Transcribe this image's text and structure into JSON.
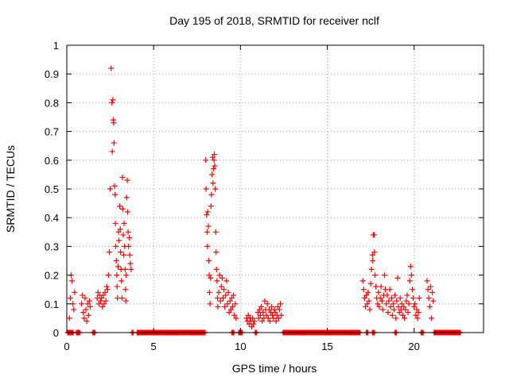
{
  "chart_data": {
    "type": "scatter",
    "title": "Day 195 of 2018, SRMTID for receiver nclf",
    "xlabel": "GPS time / hours",
    "ylabel": "SRMTID / TECUs",
    "xlim": [
      0,
      24
    ],
    "ylim": [
      0,
      1
    ],
    "xticks": [
      0,
      5,
      10,
      15,
      20
    ],
    "xtick_labels": [
      "0",
      "5",
      "10",
      "15",
      "20"
    ],
    "yticks": [
      0,
      0.1,
      0.2,
      0.3,
      0.4,
      0.5,
      0.6,
      0.7,
      0.8,
      0.9,
      1
    ],
    "ytick_labels": [
      "0",
      "0.1",
      "0.2",
      "0.3",
      "0.4",
      "0.5",
      "0.6",
      "0.7",
      "0.8",
      "0.9",
      "1"
    ],
    "grid": true,
    "marker": "+",
    "color": "#ff0000",
    "series": [
      {
        "name": "SRMTID",
        "points": [
          [
            0.15,
            0.05
          ],
          [
            0.2,
            0.12
          ],
          [
            0.25,
            0.2
          ],
          [
            0.3,
            0.18
          ],
          [
            0.35,
            0.1
          ],
          [
            0.4,
            0.08
          ],
          [
            0.45,
            0.14
          ],
          [
            0.85,
            0.1
          ],
          [
            0.9,
            0.13
          ],
          [
            0.95,
            0.07
          ],
          [
            1.0,
            0.05
          ],
          [
            1.05,
            0.12
          ],
          [
            1.1,
            0.08
          ],
          [
            1.15,
            0.04
          ],
          [
            1.2,
            0.1
          ],
          [
            1.25,
            0.06
          ],
          [
            1.3,
            0.11
          ],
          [
            1.35,
            0.09
          ],
          [
            1.75,
            0.12
          ],
          [
            1.8,
            0.14
          ],
          [
            1.85,
            0.1
          ],
          [
            1.9,
            0.13
          ],
          [
            1.95,
            0.11
          ],
          [
            2.0,
            0.12
          ],
          [
            2.05,
            0.09
          ],
          [
            2.1,
            0.13
          ],
          [
            2.15,
            0.1
          ],
          [
            2.2,
            0.14
          ],
          [
            2.25,
            0.11
          ],
          [
            2.3,
            0.16
          ],
          [
            2.35,
            0.15
          ],
          [
            2.4,
            0.2
          ],
          [
            2.45,
            0.28
          ],
          [
            2.5,
            0.5
          ],
          [
            2.55,
            0.92
          ],
          [
            2.6,
            0.8
          ],
          [
            2.62,
            0.63
          ],
          [
            2.65,
            0.81
          ],
          [
            2.68,
            0.74
          ],
          [
            2.7,
            0.73
          ],
          [
            2.72,
            0.66
          ],
          [
            2.75,
            0.51
          ],
          [
            2.78,
            0.48
          ],
          [
            2.8,
            0.38
          ],
          [
            2.82,
            0.3
          ],
          [
            2.85,
            0.25
          ],
          [
            2.88,
            0.2
          ],
          [
            2.9,
            0.16
          ],
          [
            2.92,
            0.12
          ],
          [
            2.95,
            0.23
          ],
          [
            2.98,
            0.35
          ],
          [
            3.0,
            0.32
          ],
          [
            3.05,
            0.44
          ],
          [
            3.08,
            0.36
          ],
          [
            3.1,
            0.28
          ],
          [
            3.12,
            0.22
          ],
          [
            3.15,
            0.18
          ],
          [
            3.18,
            0.12
          ],
          [
            3.2,
            0.54
          ],
          [
            3.22,
            0.43
          ],
          [
            3.25,
            0.34
          ],
          [
            3.28,
            0.27
          ],
          [
            3.3,
            0.38
          ],
          [
            3.33,
            0.3
          ],
          [
            3.36,
            0.22
          ],
          [
            3.38,
            0.15
          ],
          [
            3.4,
            0.11
          ],
          [
            3.42,
            0.2
          ],
          [
            3.45,
            0.47
          ],
          [
            3.48,
            0.53
          ],
          [
            3.5,
            0.42
          ],
          [
            3.53,
            0.35
          ],
          [
            3.56,
            0.3
          ],
          [
            3.6,
            0.33
          ],
          [
            3.63,
            0.27
          ],
          [
            3.66,
            0.24
          ],
          [
            3.7,
            0.22
          ],
          [
            8.0,
            0.6
          ],
          [
            8.02,
            0.5
          ],
          [
            8.05,
            0.41
          ],
          [
            8.08,
            0.35
          ],
          [
            8.1,
            0.3
          ],
          [
            8.12,
            0.42
          ],
          [
            8.15,
            0.37
          ],
          [
            8.18,
            0.25
          ],
          [
            8.2,
            0.2
          ],
          [
            8.22,
            0.14
          ],
          [
            8.25,
            0.1
          ],
          [
            8.28,
            0.19
          ],
          [
            8.3,
            0.44
          ],
          [
            8.33,
            0.48
          ],
          [
            8.36,
            0.55
          ],
          [
            8.4,
            0.61
          ],
          [
            8.42,
            0.52
          ],
          [
            8.45,
            0.57
          ],
          [
            8.48,
            0.6
          ],
          [
            8.5,
            0.62
          ],
          [
            8.52,
            0.58
          ],
          [
            8.55,
            0.5
          ],
          [
            8.58,
            0.35
          ],
          [
            8.6,
            0.28
          ],
          [
            8.62,
            0.22
          ],
          [
            8.65,
            0.18
          ],
          [
            8.68,
            0.12
          ],
          [
            8.7,
            0.09
          ],
          [
            8.75,
            0.14
          ],
          [
            8.8,
            0.2
          ],
          [
            8.85,
            0.11
          ],
          [
            8.9,
            0.16
          ],
          [
            8.95,
            0.19
          ],
          [
            9.0,
            0.12
          ],
          [
            9.05,
            0.15
          ],
          [
            9.1,
            0.09
          ],
          [
            9.15,
            0.13
          ],
          [
            9.2,
            0.18
          ],
          [
            9.25,
            0.1
          ],
          [
            9.3,
            0.14
          ],
          [
            9.35,
            0.07
          ],
          [
            9.4,
            0.11
          ],
          [
            9.45,
            0.08
          ],
          [
            9.5,
            0.12
          ],
          [
            9.55,
            0.09
          ],
          [
            9.6,
            0.13
          ],
          [
            9.65,
            0.06
          ],
          [
            9.7,
            0.1
          ],
          [
            9.75,
            0.05
          ],
          [
            10.35,
            0.05
          ],
          [
            10.4,
            0.04
          ],
          [
            10.45,
            0.06
          ],
          [
            10.5,
            0.03
          ],
          [
            10.55,
            0.05
          ],
          [
            10.6,
            0.04
          ],
          [
            10.65,
            0.02
          ],
          [
            10.7,
            0.05
          ],
          [
            10.75,
            0.03
          ],
          [
            10.8,
            0.04
          ],
          [
            11.0,
            0.07
          ],
          [
            11.05,
            0.05
          ],
          [
            11.1,
            0.08
          ],
          [
            11.15,
            0.06
          ],
          [
            11.2,
            0.09
          ],
          [
            11.25,
            0.04
          ],
          [
            11.3,
            0.07
          ],
          [
            11.35,
            0.05
          ],
          [
            11.4,
            0.11
          ],
          [
            11.45,
            0.08
          ],
          [
            11.5,
            0.06
          ],
          [
            11.55,
            0.1
          ],
          [
            11.6,
            0.05
          ],
          [
            11.65,
            0.08
          ],
          [
            11.7,
            0.04
          ],
          [
            11.75,
            0.07
          ],
          [
            11.8,
            0.09
          ],
          [
            11.85,
            0.06
          ],
          [
            11.9,
            0.05
          ],
          [
            11.95,
            0.08
          ],
          [
            12.0,
            0.07
          ],
          [
            12.05,
            0.04
          ],
          [
            12.1,
            0.06
          ],
          [
            12.15,
            0.09
          ],
          [
            12.2,
            0.05
          ],
          [
            12.25,
            0.08
          ],
          [
            12.3,
            0.1
          ],
          [
            12.35,
            0.06
          ],
          [
            17.05,
            0.18
          ],
          [
            17.1,
            0.15
          ],
          [
            17.15,
            0.12
          ],
          [
            17.2,
            0.09
          ],
          [
            17.25,
            0.13
          ],
          [
            17.3,
            0.1
          ],
          [
            17.35,
            0.14
          ],
          [
            17.4,
            0.11
          ],
          [
            17.45,
            0.08
          ],
          [
            17.5,
            0.17
          ],
          [
            17.55,
            0.22
          ],
          [
            17.6,
            0.27
          ],
          [
            17.62,
            0.25
          ],
          [
            17.65,
            0.34
          ],
          [
            17.7,
            0.34
          ],
          [
            17.72,
            0.28
          ],
          [
            17.75,
            0.2
          ],
          [
            17.8,
            0.16
          ],
          [
            17.85,
            0.12
          ],
          [
            17.9,
            0.1
          ],
          [
            17.95,
            0.14
          ],
          [
            18.0,
            0.09
          ],
          [
            18.05,
            0.12
          ],
          [
            18.1,
            0.16
          ],
          [
            18.15,
            0.11
          ],
          [
            18.2,
            0.08
          ],
          [
            18.25,
            0.13
          ],
          [
            18.3,
            0.2
          ],
          [
            18.35,
            0.15
          ],
          [
            18.4,
            0.1
          ],
          [
            18.45,
            0.13
          ],
          [
            18.5,
            0.07
          ],
          [
            18.55,
            0.11
          ],
          [
            18.6,
            0.15
          ],
          [
            18.65,
            0.09
          ],
          [
            18.7,
            0.12
          ],
          [
            18.75,
            0.06
          ],
          [
            18.8,
            0.1
          ],
          [
            18.85,
            0.08
          ],
          [
            18.9,
            0.13
          ],
          [
            18.95,
            0.05
          ],
          [
            19.0,
            0.11
          ],
          [
            19.05,
            0.19
          ],
          [
            19.1,
            0.09
          ],
          [
            19.15,
            0.07
          ],
          [
            19.2,
            0.12
          ],
          [
            19.25,
            0.08
          ],
          [
            19.3,
            0.1
          ],
          [
            19.35,
            0.06
          ],
          [
            19.4,
            0.09
          ],
          [
            19.45,
            0.05
          ],
          [
            19.5,
            0.08
          ],
          [
            19.55,
            0.11
          ],
          [
            19.6,
            0.13
          ],
          [
            19.65,
            0.07
          ],
          [
            19.7,
            0.1
          ],
          [
            19.75,
            0.18
          ],
          [
            19.8,
            0.23
          ],
          [
            19.85,
            0.2
          ],
          [
            19.9,
            0.15
          ],
          [
            19.95,
            0.12
          ],
          [
            20.0,
            0.09
          ],
          [
            20.05,
            0.1
          ],
          [
            20.1,
            0.06
          ],
          [
            20.15,
            0.08
          ],
          [
            20.2,
            0.05
          ],
          [
            20.25,
            0.07
          ],
          [
            20.3,
            0.12
          ],
          [
            20.75,
            0.18
          ],
          [
            20.8,
            0.15
          ],
          [
            20.85,
            0.12
          ],
          [
            20.9,
            0.09
          ],
          [
            20.95,
            0.16
          ],
          [
            21.0,
            0.05
          ],
          [
            21.05,
            0.14
          ],
          [
            21.1,
            0.11
          ]
        ]
      }
    ],
    "zero_runs": [
      [
        0.05,
        0.4
      ],
      [
        0.55,
        0.75
      ],
      [
        1.5,
        1.65
      ],
      [
        3.75,
        3.85
      ],
      [
        4.05,
        8.0
      ],
      [
        9.5,
        9.65
      ],
      [
        9.9,
        10.1
      ],
      [
        10.85,
        10.95
      ],
      [
        12.45,
        16.9
      ],
      [
        17.25,
        17.35
      ],
      [
        17.6,
        17.75
      ],
      [
        18.9,
        19.0
      ],
      [
        20.4,
        20.55
      ],
      [
        21.15,
        22.7
      ]
    ]
  }
}
